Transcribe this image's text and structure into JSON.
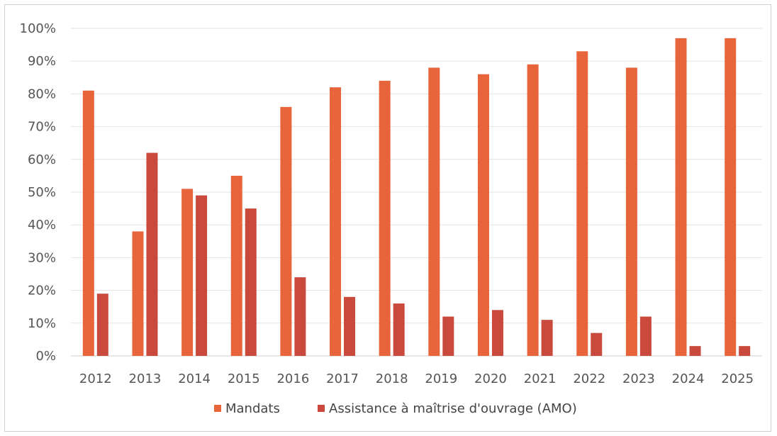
{
  "chart_data": {
    "type": "bar",
    "categories": [
      "2012",
      "2013",
      "2014",
      "2015",
      "2016",
      "2017",
      "2018",
      "2019",
      "2020",
      "2021",
      "2022",
      "2023",
      "2024",
      "2025"
    ],
    "series": [
      {
        "name": "Mandats",
        "color": "#e8643a",
        "values": [
          81,
          38,
          51,
          55,
          76,
          82,
          84,
          88,
          86,
          89,
          93,
          88,
          97,
          97
        ]
      },
      {
        "name": "Assistance à maîtrise d'ouvrage (AMO)",
        "color": "#c94a3d",
        "values": [
          19,
          62,
          49,
          45,
          24,
          18,
          16,
          12,
          14,
          11,
          7,
          12,
          3,
          3
        ]
      }
    ],
    "ylim": [
      0,
      100
    ],
    "yticks": [
      0,
      10,
      20,
      30,
      40,
      50,
      60,
      70,
      80,
      90,
      100
    ],
    "ytick_labels": [
      "0%",
      "10%",
      "20%",
      "30%",
      "40%",
      "50%",
      "60%",
      "70%",
      "80%",
      "90%",
      "100%"
    ],
    "grid": true,
    "legend_position": "bottom",
    "title": "",
    "xlabel": "",
    "ylabel": ""
  }
}
